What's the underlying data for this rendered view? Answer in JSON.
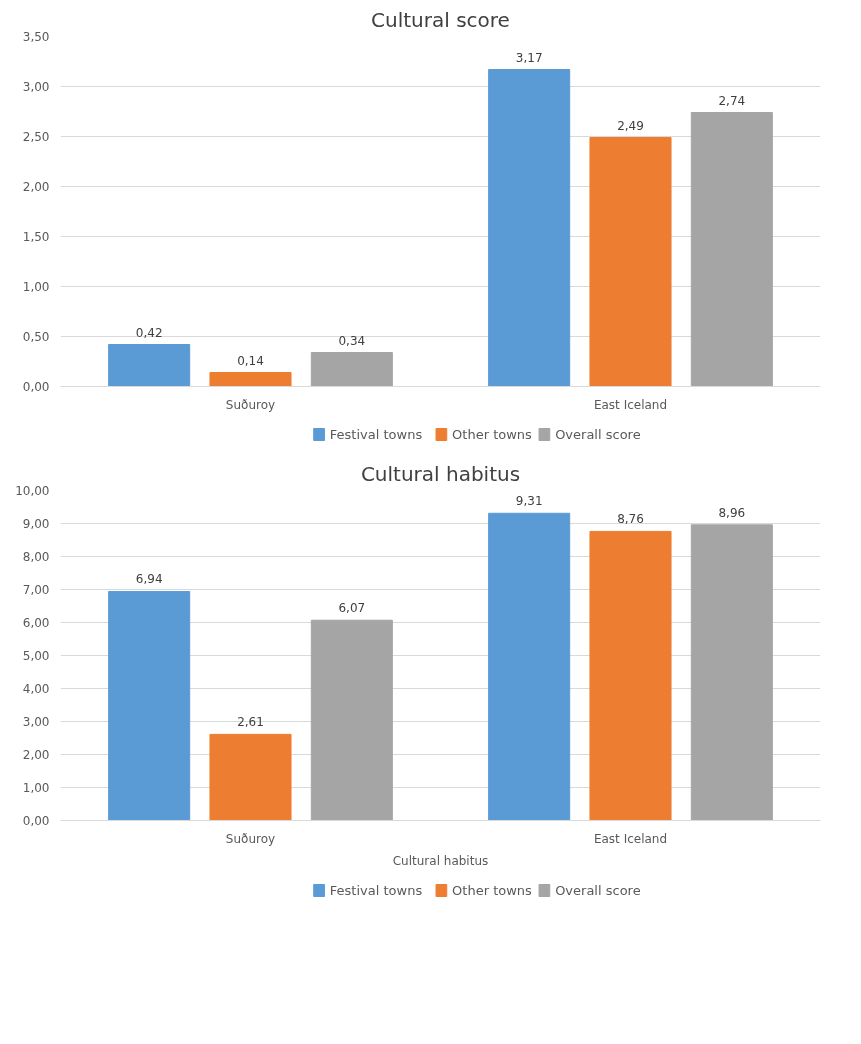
{
  "chart_data": [
    {
      "type": "bar",
      "title": "Cultural score",
      "categories": [
        "Suðuroy",
        "East Iceland"
      ],
      "series": [
        {
          "name": "Festival towns",
          "color": "#5b9bd5",
          "values": [
            0.42,
            3.17
          ],
          "value_labels": [
            "0,42",
            "3,17"
          ]
        },
        {
          "name": "Other towns",
          "color": "#ed7d31",
          "values": [
            0.14,
            2.49
          ],
          "value_labels": [
            "0,14",
            "2,49"
          ]
        },
        {
          "name": "Overall score",
          "color": "#a5a5a5",
          "values": [
            0.34,
            2.74
          ],
          "value_labels": [
            "0,34",
            "2,74"
          ]
        }
      ],
      "ylim": [
        0,
        3.5
      ],
      "yticks": [
        {
          "value": 0,
          "label": "0,00"
        },
        {
          "value": 0.5,
          "label": "0,50"
        },
        {
          "value": 1,
          "label": "1,00"
        },
        {
          "value": 1.5,
          "label": "1,50"
        },
        {
          "value": 2,
          "label": "2,00"
        },
        {
          "value": 2.5,
          "label": "2,50"
        },
        {
          "value": 3,
          "label": "3,00"
        },
        {
          "value": 3.5,
          "label": "3,50"
        }
      ],
      "grid": "y",
      "legend": "bottom"
    },
    {
      "type": "bar",
      "title": "Cultural habitus",
      "xlabel": "Cultural habitus",
      "categories": [
        "Suðuroy",
        "East Iceland"
      ],
      "series": [
        {
          "name": "Festival towns",
          "color": "#5b9bd5",
          "values": [
            6.94,
            9.31
          ],
          "value_labels": [
            "6,94",
            "9,31"
          ]
        },
        {
          "name": "Other towns",
          "color": "#ed7d31",
          "values": [
            2.61,
            8.76
          ],
          "value_labels": [
            "2,61",
            "8,76"
          ]
        },
        {
          "name": "Overall score",
          "color": "#a5a5a5",
          "values": [
            6.07,
            8.96
          ],
          "value_labels": [
            "6,07",
            "8,96"
          ]
        }
      ],
      "ylim": [
        0,
        10
      ],
      "yticks": [
        {
          "value": 0,
          "label": "0,00"
        },
        {
          "value": 1,
          "label": "1,00"
        },
        {
          "value": 2,
          "label": "2,00"
        },
        {
          "value": 3,
          "label": "3,00"
        },
        {
          "value": 4,
          "label": "4,00"
        },
        {
          "value": 5,
          "label": "5,00"
        },
        {
          "value": 6,
          "label": "6,00"
        },
        {
          "value": 7,
          "label": "7,00"
        },
        {
          "value": 8,
          "label": "8,00"
        },
        {
          "value": 9,
          "label": "9,00"
        },
        {
          "value": 10,
          "label": "10,00"
        }
      ],
      "grid": "y",
      "legend": "bottom"
    }
  ]
}
